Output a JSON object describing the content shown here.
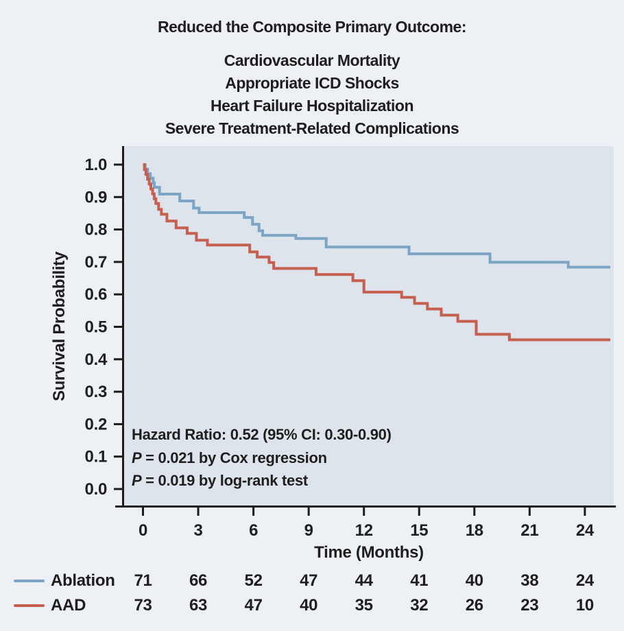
{
  "chart_data": {
    "type": "line",
    "subtype": "kaplan-meier-step",
    "title": "Reduced the Composite Primary Outcome:",
    "subtitles": [
      "Cardiovascular Mortality",
      "Appropriate ICD Shocks",
      "Heart Failure Hospitalization",
      "Severe Treatment-Related Complications"
    ],
    "xlabel": "Time (Months)",
    "ylabel": "Survival Probability",
    "xlim": [
      0,
      25.4
    ],
    "ylim": [
      0.0,
      1.0
    ],
    "grid": false,
    "x_ticks": [
      0,
      3,
      6,
      9,
      12,
      15,
      18,
      21,
      24
    ],
    "y_ticks": [
      1.0,
      0.9,
      0.8,
      0.7,
      0.6,
      0.5,
      0.4,
      0.3,
      0.2,
      0.1,
      0.0
    ],
    "y_tick_labels": [
      "1.0",
      "0.9",
      "0.8",
      "0.7",
      "0.6",
      "0.5",
      "0.4",
      "0.3",
      "0.2",
      "0.1",
      "0.0"
    ],
    "legend_position": "bottom-left (at-risk table)",
    "series": [
      {
        "name": "Ablation",
        "color": "#7ba4c5",
        "steps": [
          [
            0,
            1.0
          ],
          [
            0.12,
            0.986
          ],
          [
            0.25,
            0.972
          ],
          [
            0.4,
            0.958
          ],
          [
            0.55,
            0.944
          ],
          [
            0.62,
            0.93
          ],
          [
            0.9,
            0.909
          ],
          [
            2.0,
            0.888
          ],
          [
            2.75,
            0.866
          ],
          [
            3.05,
            0.852
          ],
          [
            5.5,
            0.837
          ],
          [
            5.95,
            0.816
          ],
          [
            6.3,
            0.796
          ],
          [
            6.5,
            0.782
          ],
          [
            8.3,
            0.772
          ],
          [
            9.95,
            0.746
          ],
          [
            14.45,
            0.725
          ],
          [
            18.85,
            0.699
          ],
          [
            23.1,
            0.684
          ]
        ]
      },
      {
        "name": "AAD",
        "color": "#c65f50",
        "steps": [
          [
            0,
            1.0
          ],
          [
            0.08,
            0.985
          ],
          [
            0.16,
            0.97
          ],
          [
            0.25,
            0.955
          ],
          [
            0.34,
            0.94
          ],
          [
            0.43,
            0.925
          ],
          [
            0.52,
            0.91
          ],
          [
            0.61,
            0.895
          ],
          [
            0.7,
            0.88
          ],
          [
            0.85,
            0.862
          ],
          [
            1.0,
            0.847
          ],
          [
            1.3,
            0.826
          ],
          [
            1.8,
            0.805
          ],
          [
            2.4,
            0.788
          ],
          [
            2.9,
            0.767
          ],
          [
            3.5,
            0.752
          ],
          [
            5.8,
            0.731
          ],
          [
            6.2,
            0.715
          ],
          [
            6.85,
            0.698
          ],
          [
            7.1,
            0.68
          ],
          [
            9.4,
            0.661
          ],
          [
            11.4,
            0.642
          ],
          [
            12.0,
            0.607
          ],
          [
            14.05,
            0.591
          ],
          [
            14.75,
            0.572
          ],
          [
            15.45,
            0.555
          ],
          [
            16.2,
            0.536
          ],
          [
            17.1,
            0.517
          ],
          [
            18.1,
            0.477
          ],
          [
            19.9,
            0.46
          ]
        ]
      }
    ],
    "annotation": {
      "hazard_ratio_line": "Hazard Ratio: 0.52 (95% CI: 0.30-0.90)",
      "p_italic": "P",
      "cox_line": " = 0.021 by Cox regression",
      "logrank_line": " = 0.019 by log-rank test"
    },
    "at_risk": {
      "time_points": [
        0,
        3,
        6,
        9,
        12,
        15,
        18,
        21,
        24
      ],
      "rows": [
        {
          "label": "Ablation",
          "color": "#7ba4c5",
          "counts": [
            71,
            66,
            52,
            47,
            44,
            41,
            40,
            38,
            24
          ]
        },
        {
          "label": "AAD",
          "color": "#c65f50",
          "counts": [
            73,
            63,
            47,
            40,
            35,
            32,
            26,
            23,
            10
          ]
        }
      ]
    },
    "colors": {
      "page_bg": "#edf0f4",
      "plot_bg": "#dde4eb",
      "axis": "#1c1c1c",
      "text": "#1f1f22"
    }
  }
}
